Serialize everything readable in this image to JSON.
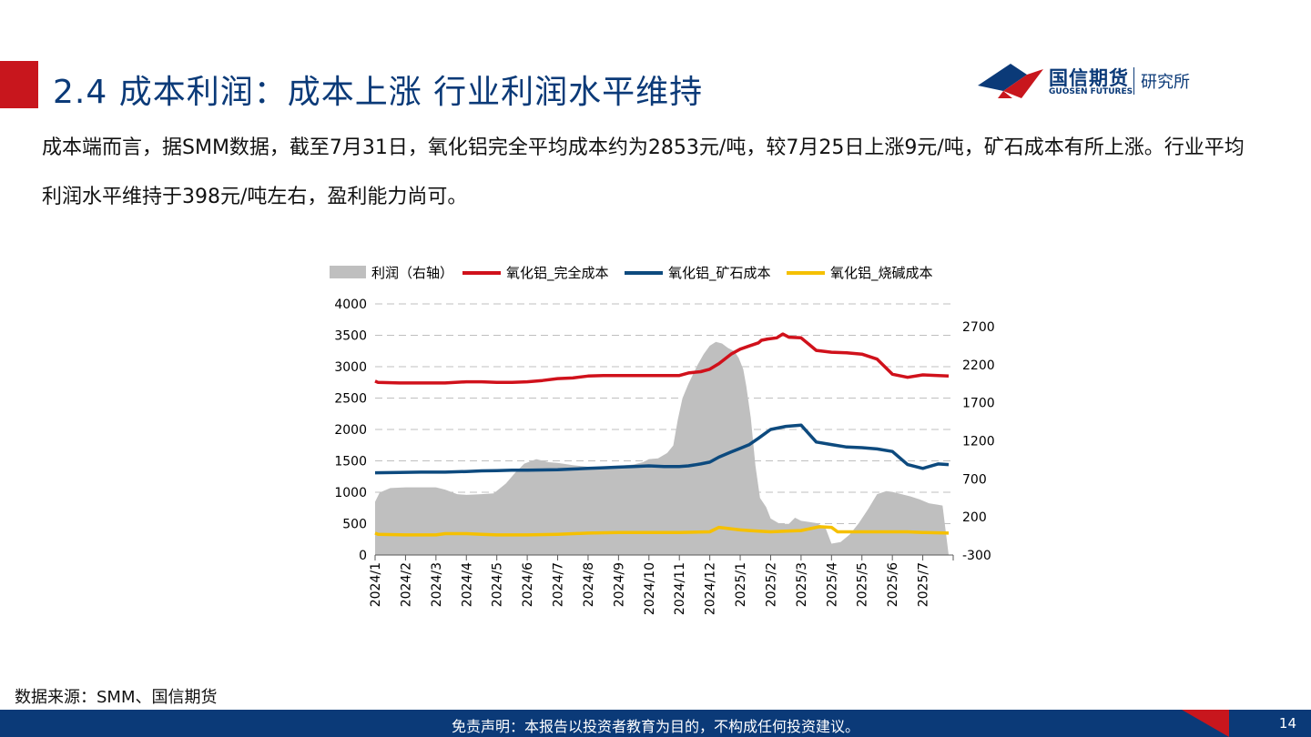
{
  "header": {
    "title": "2.4 成本利润：成本上涨 行业利润水平维持",
    "logo_cn": "国信期货",
    "logo_en": "GUOSEN FUTURES",
    "logo_dept": "研究所"
  },
  "body_text": "成本端而言，据SMM数据，截至7月31日，氧化铝完全平均成本约为2853元/吨，较7月25日上涨9元/吨，矿石成本有所上涨。行业平均利润水平维持于398元/吨左右，盈利能力尚可。",
  "source": "数据来源：SMM、国信期货",
  "footer": {
    "disclaimer": "免责声明：本报告以投资者教育为目的，不构成任何投资建议。",
    "page_number": "14"
  },
  "colors": {
    "accent_red": "#c8161d",
    "brand_blue": "#0b3a78",
    "profit_area": "#bfbfbf",
    "full_cost": "#d0111b",
    "ore_cost": "#0d4a7e",
    "soda_cost": "#f5c000"
  },
  "chart_data": {
    "type": "line",
    "x_ticks": [
      "2024/1",
      "2024/2",
      "2024/3",
      "2024/4",
      "2024/5",
      "2024/6",
      "2024/7",
      "2024/8",
      "2024/9",
      "2024/10",
      "2024/11",
      "2024/12",
      "2025/1",
      "2025/2",
      "2025/3",
      "2025/4",
      "2025/5",
      "2025/6",
      "2025/7"
    ],
    "ylim_left": [
      0,
      4000
    ],
    "yticks_left": [
      0,
      500,
      1000,
      1500,
      2000,
      2500,
      3000,
      3500,
      4000
    ],
    "ylim_right": [
      -300,
      3000
    ],
    "yticks_right": [
      -300,
      200,
      700,
      1200,
      1700,
      2200,
      2700
    ],
    "grid": true,
    "legend_position": "top",
    "series": [
      {
        "name": "利润（右轴）",
        "type": "area",
        "axis": "right",
        "x": [
          0,
          0.15,
          0.5,
          1,
          1.5,
          2,
          2.3,
          2.7,
          3,
          3.5,
          3.9,
          4.3,
          4.6,
          4.9,
          5.3,
          5.7,
          6,
          6.5,
          7,
          7.5,
          8,
          8.5,
          8.8,
          9,
          9.3,
          9.6,
          9.8,
          9.95,
          10.1,
          10.3,
          10.6,
          10.8,
          11,
          11.2,
          11.4,
          11.6,
          11.8,
          11.95,
          12.1,
          12.2,
          12.35,
          12.5,
          12.65,
          12.85,
          13,
          13.3,
          13.6,
          13.8,
          14,
          14.5,
          14.8,
          15,
          15.3,
          15.6,
          15.9,
          16.2,
          16.5,
          16.8,
          17,
          17.3,
          17.6,
          17.9,
          18.2,
          18.5,
          18.65,
          18.85
        ],
        "y": [
          400,
          520,
          580,
          590,
          590,
          590,
          560,
          500,
          490,
          500,
          510,
          640,
          780,
          900,
          960,
          920,
          910,
          880,
          860,
          850,
          870,
          890,
          920,
          960,
          970,
          1040,
          1140,
          1480,
          1760,
          1950,
          2200,
          2340,
          2450,
          2500,
          2480,
          2420,
          2380,
          2290,
          2140,
          1920,
          1500,
          870,
          450,
          330,
          180,
          110,
          110,
          190,
          150,
          120,
          60,
          -150,
          -130,
          -30,
          120,
          300,
          500,
          540,
          530,
          500,
          470,
          430,
          380,
          360,
          350,
          -300
        ]
      },
      {
        "name": "氧化铝_完全成本",
        "type": "line",
        "axis": "left",
        "x": [
          0,
          0.1,
          0.8,
          1.5,
          2.3,
          3,
          3.5,
          4,
          4.5,
          5,
          5.5,
          6,
          6.5,
          7,
          7.5,
          8,
          8.5,
          9,
          9.5,
          10,
          10.3,
          10.7,
          11,
          11.3,
          11.7,
          12,
          12.3,
          12.6,
          12.7,
          12.9,
          13.2,
          13.4,
          13.6,
          14,
          14.5,
          15,
          15.5,
          16,
          16.5,
          17,
          17.5,
          18,
          18.5,
          18.85
        ],
        "y": [
          2770,
          2750,
          2740,
          2740,
          2740,
          2760,
          2760,
          2750,
          2750,
          2760,
          2780,
          2810,
          2820,
          2850,
          2860,
          2860,
          2860,
          2860,
          2860,
          2860,
          2900,
          2920,
          2960,
          3050,
          3200,
          3280,
          3330,
          3380,
          3420,
          3440,
          3460,
          3520,
          3470,
          3460,
          3260,
          3230,
          3220,
          3200,
          3120,
          2880,
          2830,
          2870,
          2860,
          2850
        ]
      },
      {
        "name": "氧化铝_矿石成本",
        "type": "line",
        "axis": "left",
        "x": [
          0,
          0.8,
          1.5,
          2.3,
          3,
          3.5,
          4,
          4.5,
          5,
          5.5,
          6,
          6.5,
          7,
          7.5,
          8,
          8.5,
          9,
          9.5,
          10,
          10.3,
          10.7,
          11,
          11.3,
          11.7,
          12,
          12.3,
          12.6,
          12.8,
          13,
          13.2,
          13.5,
          14,
          14.5,
          15,
          15.5,
          16,
          16.5,
          17,
          17.5,
          18,
          18.5,
          18.85
        ],
        "y": [
          1310,
          1315,
          1320,
          1320,
          1330,
          1340,
          1345,
          1350,
          1350,
          1355,
          1360,
          1370,
          1380,
          1390,
          1400,
          1410,
          1420,
          1410,
          1410,
          1420,
          1450,
          1480,
          1560,
          1640,
          1700,
          1760,
          1860,
          1930,
          2000,
          2020,
          2050,
          2070,
          1800,
          1760,
          1720,
          1710,
          1690,
          1650,
          1440,
          1380,
          1450,
          1440
        ]
      },
      {
        "name": "氧化铝_烧碱成本",
        "type": "line",
        "axis": "left",
        "x": [
          0,
          0.1,
          1,
          2,
          2.3,
          3,
          3.5,
          4,
          5,
          6,
          7,
          8,
          9,
          10,
          11,
          11.3,
          12,
          12.3,
          13,
          13.5,
          14,
          14.2,
          14.6,
          15,
          15.2,
          15.5,
          16,
          17,
          17.5,
          18,
          18.85
        ],
        "y": [
          350,
          330,
          320,
          320,
          340,
          340,
          330,
          320,
          320,
          330,
          350,
          360,
          360,
          360,
          370,
          440,
          400,
          390,
          370,
          380,
          390,
          410,
          450,
          440,
          370,
          370,
          370,
          370,
          370,
          360,
          350
        ]
      }
    ]
  }
}
